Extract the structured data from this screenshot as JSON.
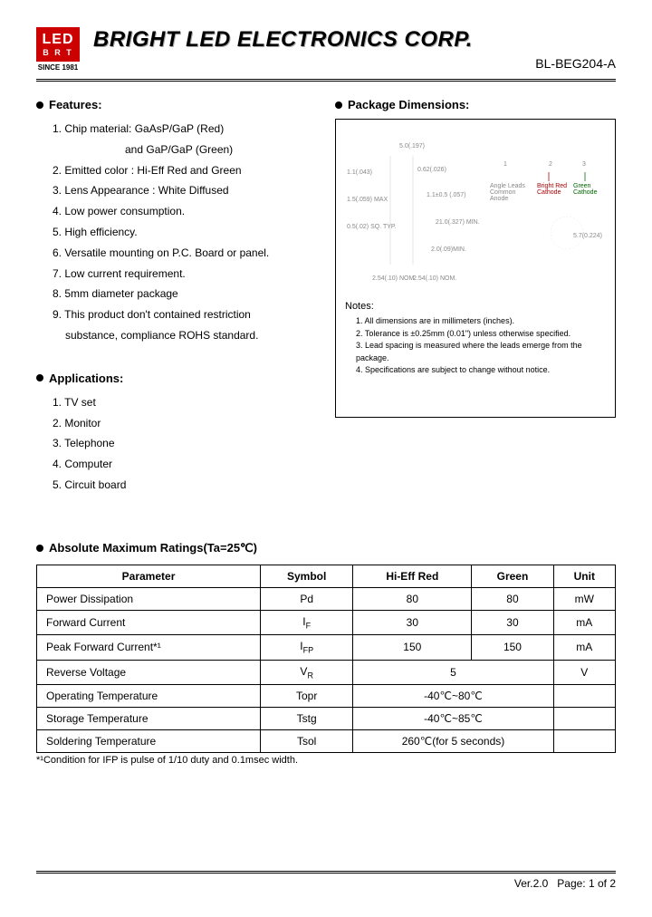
{
  "logo": {
    "line1": "LED",
    "line2": "B R T",
    "since": "SINCE 1981"
  },
  "company_name": "BRIGHT LED ELECTRONICS CORP.",
  "part_number": "BL-BEG204-A",
  "features": {
    "title": "Features:",
    "items": [
      "1. Chip material: GaAsP/GaP (Red)",
      "and GaP/GaP (Green)",
      "2. Emitted color : Hi-Eff Red and Green",
      "3. Lens Appearance : White Diffused",
      "4. Low power consumption.",
      "5. High efficiency.",
      "6. Versatile mounting on P.C. Board or panel.",
      "7. Low current requirement.",
      "8. 5mm diameter package",
      "9. This product don't contained restriction",
      "substance, compliance ROHS standard."
    ]
  },
  "applications": {
    "title": "Applications:",
    "items": [
      "1. TV set",
      "2. Monitor",
      "3. Telephone",
      "4. Computer",
      "5. Circuit board"
    ]
  },
  "package_dimensions": {
    "title": "Package Dimensions:",
    "notes_title": "Notes:",
    "notes": [
      "1. All dimensions are in millimeters (inches).",
      "2. Tolerance is ±0.25mm (0.01\") unless otherwise specified.",
      "3. Lead spacing is measured where the leads emerge from the package.",
      "4. Specifications are subject to change without notice."
    ],
    "dia_labels": {
      "top": "5.0(.197)",
      "left1": "1.1(.043)",
      "left2": "1.5(.059) MAX",
      "left3": "0.5(.02) SQ. TYP.",
      "mid1": "0.62(.026)",
      "mid2": "1.1±0.5 (.057)",
      "mid3": "21.0(.327) MIN.",
      "mid4": "2.0(.09)MIN.",
      "bot1": "2.54(.10) NOM.",
      "bot2": "2.54(.10) NOM.",
      "leads_t": "Angle Leads Common Anode",
      "leads_1": "1",
      "leads_2": "2",
      "leads_3": "3",
      "red": "Bright Red Cathode",
      "green": "Green Cathode",
      "dim": "5.7(0.224)"
    }
  },
  "ratings": {
    "title": "Absolute Maximum Ratings(Ta=25℃)",
    "columns": [
      "Parameter",
      "Symbol",
      "Hi-Eff Red",
      "Green",
      "Unit"
    ],
    "rows": [
      {
        "param": "Power Dissipation",
        "symbol": "Pd",
        "red": "80",
        "green": "80",
        "unit": "mW"
      },
      {
        "param": "Forward Current",
        "symbol_html": "I<sub>F</sub>",
        "red": "30",
        "green": "30",
        "unit": "mA"
      },
      {
        "param": "Peak Forward Current*¹",
        "symbol_html": "I<sub>FP</sub>",
        "red": "150",
        "green": "150",
        "unit": "mA"
      },
      {
        "param": "Reverse Voltage",
        "symbol_html": "V<sub>R</sub>",
        "span": "5",
        "unit": "V"
      },
      {
        "param": "Operating Temperature",
        "symbol": "Topr",
        "span": "-40℃~80℃",
        "unit": ""
      },
      {
        "param": "Storage Temperature",
        "symbol": "Tstg",
        "span": "-40℃~85℃",
        "unit": ""
      },
      {
        "param": "Soldering Temperature",
        "symbol": "Tsol",
        "span": "260℃(for 5 seconds)",
        "unit": ""
      }
    ],
    "footnote": "*¹Condition for IFP is pulse of 1/10 duty and 0.1msec width."
  },
  "footer": {
    "version": "Ver.2.0",
    "page": "Page: 1 of 2"
  }
}
